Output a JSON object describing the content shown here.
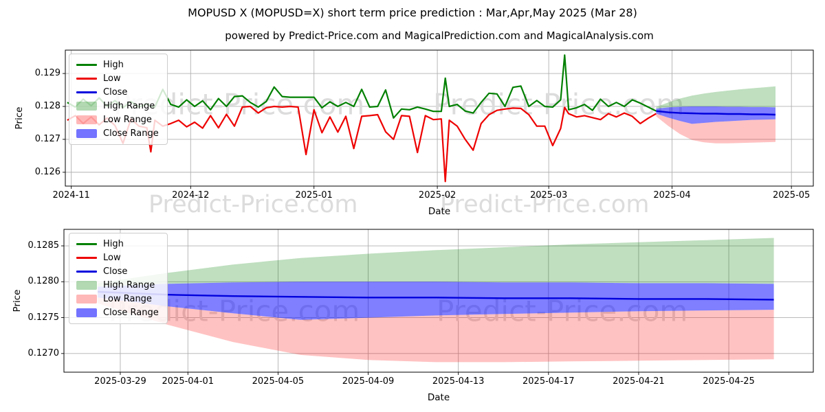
{
  "figure": {
    "title": "MOPUSD X (MOPUSD=X) short term price prediction : Mar,Apr,May 2025 (Mar 28)",
    "subtitle": "powered by Predict-Price.com and MagicalPrediction.com and MagicalAnalysis.com",
    "watermark": "Predict-Price.com"
  },
  "colors": {
    "high": "#008000",
    "low": "#ee0000",
    "close": "#0000dd",
    "high_range": "rgba(0,128,0,0.25)",
    "low_range": "rgba(255,0,0,0.24)",
    "close_range": "rgba(0,0,255,0.5)",
    "grid": "#b0b0b0",
    "spine": "#000000",
    "watermark_color": "#dcdcdc"
  },
  "legend": [
    {
      "label": "High",
      "type": "line",
      "color": "#008000"
    },
    {
      "label": "Low",
      "type": "line",
      "color": "#ee0000"
    },
    {
      "label": "Close",
      "type": "line",
      "color": "#0000dd"
    },
    {
      "label": "High Range",
      "type": "patch",
      "color": "rgba(0,128,0,0.3)"
    },
    {
      "label": "Low Range",
      "type": "patch",
      "color": "rgba(255,0,0,0.28)"
    },
    {
      "label": "Close Range",
      "type": "patch",
      "color": "rgba(0,0,255,0.55)"
    }
  ],
  "chart_data": {
    "type": "line",
    "title": "MOPUSD X (MOPUSD=X) short term price prediction : Mar,Apr,May 2025 (Mar 28)",
    "charts": [
      {
        "id": "overview",
        "ylabel": "Price",
        "xlabel": "Date",
        "show_history": true,
        "xlim": [
          "2024-10-30T12:00:00Z",
          "2025-05-06T12:00:00Z"
        ],
        "ylim": [
          0.12558,
          0.12971
        ],
        "grid": true,
        "legend_position": "upper left",
        "xticks": [
          {
            "date": "2024-11-01",
            "label": "2024-11"
          },
          {
            "date": "2024-12-01",
            "label": "2024-12"
          },
          {
            "date": "2025-01-01",
            "label": "2025-01"
          },
          {
            "date": "2025-02-01",
            "label": "2025-02"
          },
          {
            "date": "2025-03-01",
            "label": "2025-03"
          },
          {
            "date": "2025-04-01",
            "label": "2025-04"
          },
          {
            "date": "2025-05-01",
            "label": "2025-05"
          }
        ],
        "yticks": [
          {
            "value": 0.129,
            "label": "0.129"
          },
          {
            "value": 0.128,
            "label": "0.128"
          },
          {
            "value": 0.127,
            "label": "0.127"
          },
          {
            "value": 0.126,
            "label": "0.126"
          }
        ]
      },
      {
        "id": "detail",
        "ylabel": "Price",
        "xlabel": "Date",
        "show_history": false,
        "xlim": [
          "2025-03-26T12:00:00Z",
          "2025-04-28T18:00:00Z"
        ],
        "ylim": [
          0.12674,
          0.12873
        ],
        "grid": true,
        "legend_position": "upper left",
        "xticks": [
          {
            "date": "2025-03-29",
            "label": "2025-03-29"
          },
          {
            "date": "2025-04-01",
            "label": "2025-04-01"
          },
          {
            "date": "2025-04-05",
            "label": "2025-04-05"
          },
          {
            "date": "2025-04-09",
            "label": "2025-04-09"
          },
          {
            "date": "2025-04-13",
            "label": "2025-04-13"
          },
          {
            "date": "2025-04-17",
            "label": "2025-04-17"
          },
          {
            "date": "2025-04-21",
            "label": "2025-04-21"
          },
          {
            "date": "2025-04-25",
            "label": "2025-04-25"
          }
        ],
        "yticks": [
          {
            "value": 0.1285,
            "label": "0.1285"
          },
          {
            "value": 0.128,
            "label": "0.1280"
          },
          {
            "value": 0.1275,
            "label": "0.1275"
          },
          {
            "value": 0.127,
            "label": "0.1270"
          }
        ]
      }
    ],
    "history": {
      "dates": [
        "2024-10-31",
        "2024-11-02",
        "2024-11-04",
        "2024-11-06",
        "2024-11-08",
        "2024-11-10",
        "2024-11-12",
        "2024-11-14",
        "2024-11-16",
        "2024-11-18",
        "2024-11-20",
        "2024-11-21",
        "2024-11-22",
        "2024-11-24",
        "2024-11-26",
        "2024-11-28",
        "2024-11-30",
        "2024-12-02",
        "2024-12-04",
        "2024-12-06",
        "2024-12-08",
        "2024-12-10",
        "2024-12-12",
        "2024-12-14",
        "2024-12-16",
        "2024-12-18",
        "2024-12-20",
        "2024-12-22",
        "2024-12-24",
        "2024-12-26",
        "2024-12-28",
        "2024-12-30",
        "2025-01-01",
        "2025-01-03",
        "2025-01-05",
        "2025-01-07",
        "2025-01-09",
        "2025-01-11",
        "2025-01-13",
        "2025-01-15",
        "2025-01-17",
        "2025-01-19",
        "2025-01-21",
        "2025-01-23",
        "2025-01-25",
        "2025-01-27",
        "2025-01-29",
        "2025-01-31",
        "2025-02-02",
        "2025-02-03",
        "2025-02-04",
        "2025-02-06",
        "2025-02-08",
        "2025-02-10",
        "2025-02-12",
        "2025-02-14",
        "2025-02-16",
        "2025-02-18",
        "2025-02-20",
        "2025-02-22",
        "2025-02-24",
        "2025-02-26",
        "2025-02-28",
        "2025-03-02",
        "2025-03-04",
        "2025-03-05",
        "2025-03-06",
        "2025-03-08",
        "2025-03-10",
        "2025-03-12",
        "2025-03-14",
        "2025-03-16",
        "2025-03-18",
        "2025-03-20",
        "2025-03-22",
        "2025-03-24",
        "2025-03-26",
        "2025-03-28"
      ],
      "high": [
        0.12812,
        0.12798,
        0.12822,
        0.12802,
        0.12826,
        0.128,
        0.12818,
        0.12796,
        0.12815,
        0.12798,
        0.12808,
        0.128,
        0.12798,
        0.12852,
        0.12806,
        0.12798,
        0.1282,
        0.128,
        0.12817,
        0.1279,
        0.12824,
        0.128,
        0.1283,
        0.12832,
        0.12812,
        0.12798,
        0.12815,
        0.12859,
        0.1283,
        0.12828,
        0.12828,
        0.12828,
        0.12828,
        0.12796,
        0.12814,
        0.128,
        0.12812,
        0.128,
        0.12852,
        0.12798,
        0.128,
        0.1285,
        0.12765,
        0.12792,
        0.1279,
        0.12798,
        0.12792,
        0.12785,
        0.12785,
        0.12886,
        0.128,
        0.12806,
        0.12786,
        0.1278,
        0.12812,
        0.1284,
        0.12838,
        0.128,
        0.12858,
        0.12862,
        0.128,
        0.12818,
        0.128,
        0.12798,
        0.1282,
        0.12956,
        0.1279,
        0.12796,
        0.12806,
        0.12788,
        0.12822,
        0.128,
        0.12812,
        0.128,
        0.1282,
        0.1281,
        0.12798,
        0.12786
      ],
      "low": [
        0.12758,
        0.12772,
        0.12748,
        0.12768,
        0.12744,
        0.12765,
        0.12742,
        0.12688,
        0.12762,
        0.1274,
        0.12735,
        0.12662,
        0.12758,
        0.1274,
        0.12748,
        0.12758,
        0.12738,
        0.12752,
        0.12734,
        0.12772,
        0.12735,
        0.12776,
        0.1274,
        0.12798,
        0.128,
        0.1278,
        0.12796,
        0.128,
        0.12798,
        0.128,
        0.12798,
        0.12654,
        0.1279,
        0.1272,
        0.12768,
        0.12722,
        0.1277,
        0.12672,
        0.1277,
        0.12772,
        0.12775,
        0.12723,
        0.127,
        0.12772,
        0.1277,
        0.1266,
        0.12772,
        0.1276,
        0.12762,
        0.12572,
        0.12758,
        0.1274,
        0.127,
        0.12667,
        0.12748,
        0.12775,
        0.12788,
        0.12792,
        0.12795,
        0.12794,
        0.12775,
        0.1274,
        0.1274,
        0.12681,
        0.12733,
        0.12797,
        0.12778,
        0.12768,
        0.12772,
        0.12766,
        0.1276,
        0.12778,
        0.12768,
        0.1278,
        0.1277,
        0.12748,
        0.12764,
        0.12778
      ]
    },
    "prediction": {
      "dates": [
        "2025-03-28",
        "2025-03-31",
        "2025-04-03",
        "2025-04-06",
        "2025-04-09",
        "2025-04-12",
        "2025-04-15",
        "2025-04-18",
        "2025-04-21",
        "2025-04-24",
        "2025-04-27"
      ],
      "high_upper": [
        0.12798,
        0.12812,
        0.12824,
        0.12833,
        0.12839,
        0.12844,
        0.12848,
        0.12852,
        0.12855,
        0.12858,
        0.12861
      ],
      "close_upper": [
        0.12793,
        0.12797,
        0.12799,
        0.128,
        0.128,
        0.128,
        0.12799,
        0.12799,
        0.12798,
        0.12798,
        0.12797
      ],
      "close": [
        0.12786,
        0.12782,
        0.1278,
        0.12779,
        0.12778,
        0.12778,
        0.12777,
        0.12777,
        0.12776,
        0.12776,
        0.12775
      ],
      "close_lower": [
        0.12778,
        0.12766,
        0.12756,
        0.12747,
        0.1275,
        0.12753,
        0.12755,
        0.12757,
        0.12759,
        0.1276,
        0.12761
      ],
      "low_lower": [
        0.1277,
        0.12741,
        0.12716,
        0.12698,
        0.12691,
        0.12688,
        0.12688,
        0.12689,
        0.1269,
        0.12691,
        0.12692
      ]
    }
  }
}
